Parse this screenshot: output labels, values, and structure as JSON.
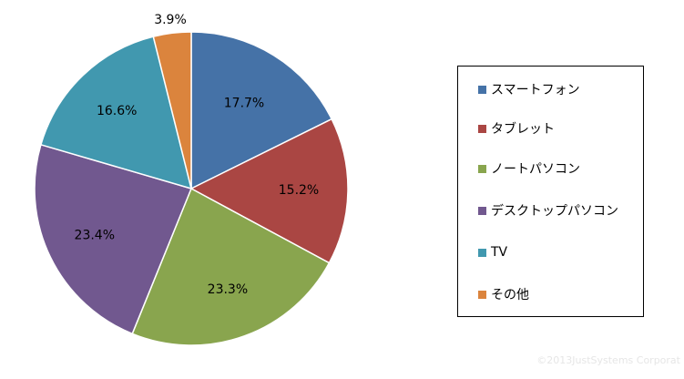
{
  "chart_data": {
    "type": "pie",
    "categories": [
      "スマートフォン",
      "タブレット",
      "ノートパソコン",
      "デスクトップパソコン",
      "TV",
      "その他"
    ],
    "values": [
      17.7,
      15.2,
      23.3,
      23.4,
      16.6,
      3.9
    ],
    "value_labels": [
      "17.7%",
      "15.2%",
      "23.3%",
      "23.4%",
      "16.6%",
      "3.9%"
    ],
    "colors": [
      "#4572a7",
      "#aa4643",
      "#89a54e",
      "#71588f",
      "#4198af",
      "#db843d"
    ],
    "start_angle_deg": 0,
    "direction": "clockwise",
    "legend_position": "right"
  },
  "legend": {
    "items": [
      {
        "label": "スマートフォン",
        "color": "#4572a7"
      },
      {
        "label": "タブレット",
        "color": "#aa4643"
      },
      {
        "label": "ノートパソコン",
        "color": "#89a54e"
      },
      {
        "label": "デスクトップパソコン",
        "color": "#71588f"
      },
      {
        "label": "TV",
        "color": "#4198af"
      },
      {
        "label": "その他",
        "color": "#db843d"
      }
    ]
  },
  "watermark": "©2013JustSystems Corporat"
}
